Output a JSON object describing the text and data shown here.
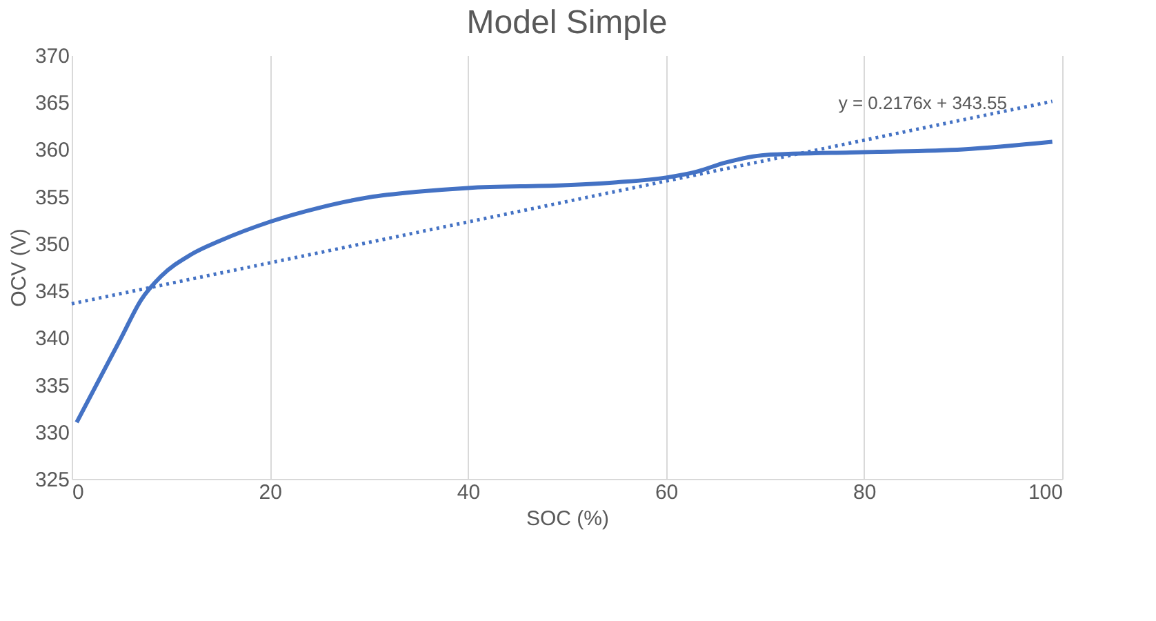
{
  "chart_data": {
    "type": "line",
    "title": "Model Simple",
    "xlabel": "SOC (%)",
    "ylabel": "OCV (V)",
    "xlim": [
      0,
      100
    ],
    "xticks": [
      0,
      20,
      40,
      60,
      80,
      100
    ],
    "ylim": [
      325,
      370
    ],
    "yticks": [
      325,
      330,
      335,
      340,
      345,
      350,
      355,
      360,
      365,
      370
    ],
    "grid": "x",
    "series": [
      {
        "type": "line",
        "color": "#4472c4",
        "line_style": "solid",
        "x": [
          0.5,
          3,
          5,
          7,
          9,
          12,
          15,
          20,
          25,
          30,
          35,
          40,
          50,
          55,
          60,
          63,
          66,
          70,
          80,
          90,
          99
        ],
        "values": [
          331,
          336,
          340,
          344,
          346.5,
          348.8,
          350.3,
          352.3,
          353.8,
          354.9,
          355.5,
          355.9,
          356.2,
          356.5,
          357,
          357.6,
          358.6,
          359.4,
          359.7,
          360,
          360.8
        ]
      },
      {
        "type": "line",
        "color": "#4472c4",
        "line_style": "dotted",
        "x": [
          0,
          99
        ],
        "values": [
          343.6,
          365.1
        ]
      }
    ],
    "annotations": [
      "y = 0.2176x + 343.55"
    ]
  }
}
